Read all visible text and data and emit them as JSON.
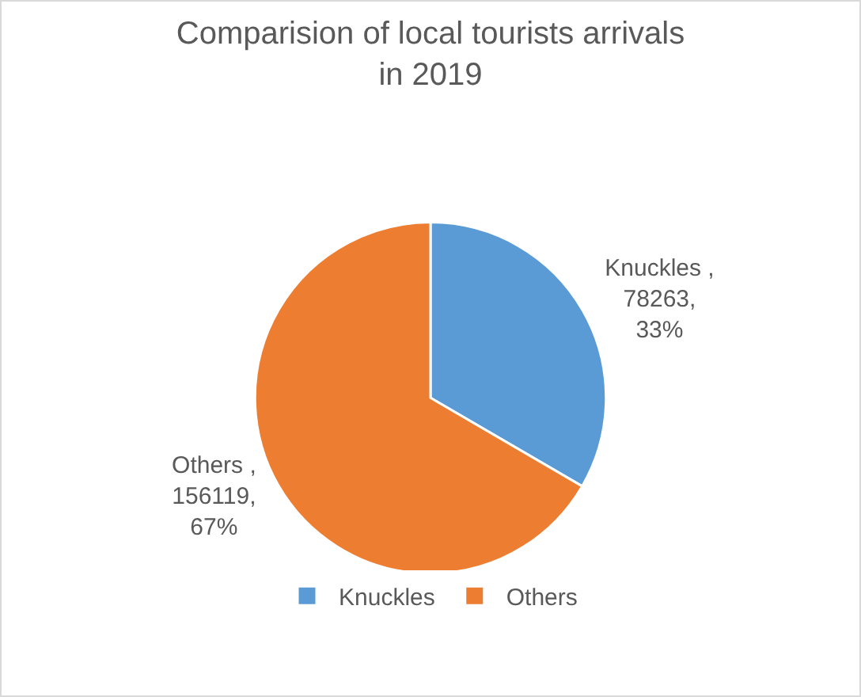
{
  "chart_data": {
    "type": "pie",
    "title": "Comparision of local tourists arrivals in 2019",
    "categories": [
      "Knuckles",
      "Others"
    ],
    "values": [
      78263,
      156119
    ],
    "colors": [
      "#5b9bd5",
      "#ed7d31"
    ],
    "value_labels": [
      "Knuckles , 78263, 33%",
      "Others , 156119, 67%"
    ],
    "legend": "bottom"
  }
}
